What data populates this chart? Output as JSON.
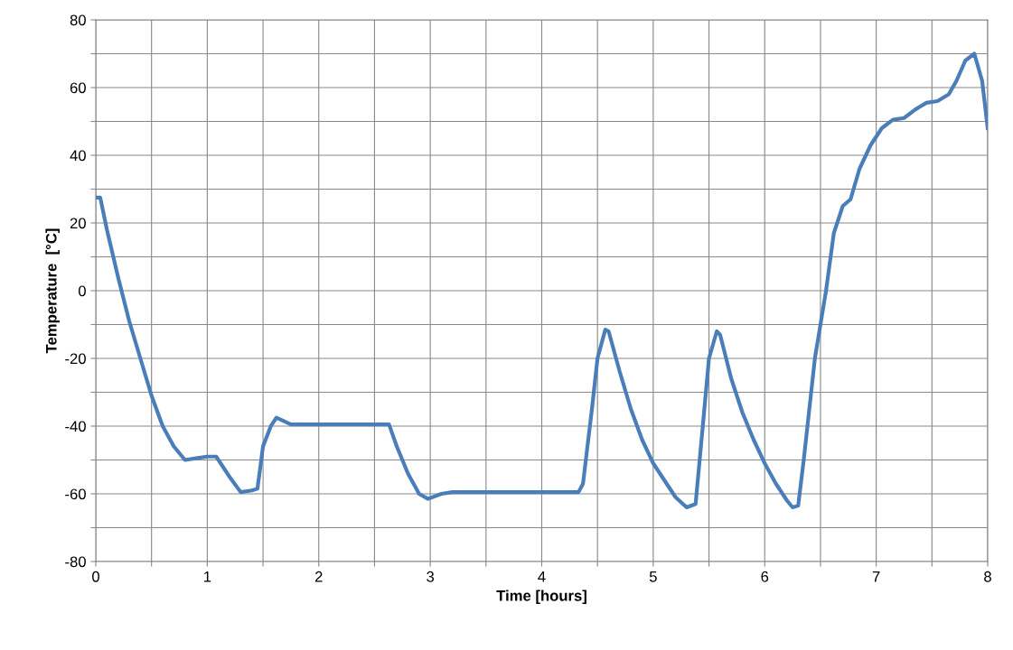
{
  "chart_data": {
    "type": "line",
    "xlabel": "Time [hours]",
    "ylabel": "Temperature  [°C]",
    "xlim": [
      0,
      8
    ],
    "ylim": [
      -80,
      80
    ],
    "xticks": [
      0,
      {
        "value": 0.5,
        "label": null
      },
      1,
      {
        "value": 1.5,
        "label": null
      },
      2,
      {
        "value": 2.5,
        "label": null
      },
      3,
      {
        "value": 3.5,
        "label": null
      },
      4,
      {
        "value": 4.5,
        "label": null
      },
      5,
      {
        "value": 5.5,
        "label": null
      },
      6,
      {
        "value": 6.5,
        "label": null
      },
      7,
      {
        "value": 7.5,
        "label": null
      },
      8
    ],
    "yticks": [
      -80,
      {
        "value": -70,
        "label": null
      },
      -60,
      {
        "value": -50,
        "label": null
      },
      -40,
      {
        "value": -30,
        "label": null
      },
      -20,
      {
        "value": -10,
        "label": null
      },
      0,
      {
        "value": 10,
        "label": null
      },
      20,
      {
        "value": 30,
        "label": null
      },
      40,
      {
        "value": 50,
        "label": null
      },
      60,
      {
        "value": 70,
        "label": null
      },
      80
    ],
    "grid": true,
    "marker": "none",
    "line_style": "solid",
    "series": [
      {
        "color": "#4a7ebb",
        "x": [
          0,
          0.04,
          0.1,
          0.2,
          0.3,
          0.4,
          0.5,
          0.6,
          0.7,
          0.8,
          0.9,
          1.0,
          1.08,
          1.2,
          1.3,
          1.4,
          1.45,
          1.5,
          1.57,
          1.62,
          1.75,
          2.0,
          2.5,
          2.63,
          2.7,
          2.8,
          2.9,
          2.98,
          3.1,
          3.2,
          3.5,
          4.0,
          4.33,
          4.37,
          4.45,
          4.5,
          4.57,
          4.6,
          4.7,
          4.8,
          4.9,
          5.0,
          5.1,
          5.2,
          5.3,
          5.38,
          5.45,
          5.5,
          5.57,
          5.6,
          5.7,
          5.8,
          5.9,
          6.0,
          6.1,
          6.2,
          6.25,
          6.3,
          6.35,
          6.45,
          6.55,
          6.62,
          6.7,
          6.77,
          6.85,
          6.95,
          7.05,
          7.15,
          7.25,
          7.35,
          7.45,
          7.55,
          7.65,
          7.72,
          7.8,
          7.88,
          7.95,
          8.0
        ],
        "values": [
          27.5,
          27.5,
          18,
          4,
          -9,
          -20,
          -31,
          -40,
          -46,
          -50,
          -49.5,
          -49,
          -49,
          -55,
          -59.5,
          -59,
          -58.5,
          -46,
          -40,
          -37.5,
          -39.5,
          -39.5,
          -39.5,
          -39.5,
          -46,
          -54,
          -60,
          -61.5,
          -60,
          -59.5,
          -59.5,
          -59.5,
          -59.5,
          -57,
          -35,
          -20,
          -11.5,
          -12,
          -24,
          -35,
          -44,
          -51,
          -56,
          -61,
          -64,
          -63,
          -38,
          -20,
          -12,
          -13,
          -26,
          -36,
          -44,
          -51,
          -57,
          -62,
          -64,
          -63.5,
          -50,
          -20,
          0,
          17,
          25,
          27,
          36,
          43,
          48,
          50.5,
          51,
          53.5,
          55.5,
          56,
          58,
          62,
          68,
          70,
          62,
          48
        ]
      }
    ]
  }
}
